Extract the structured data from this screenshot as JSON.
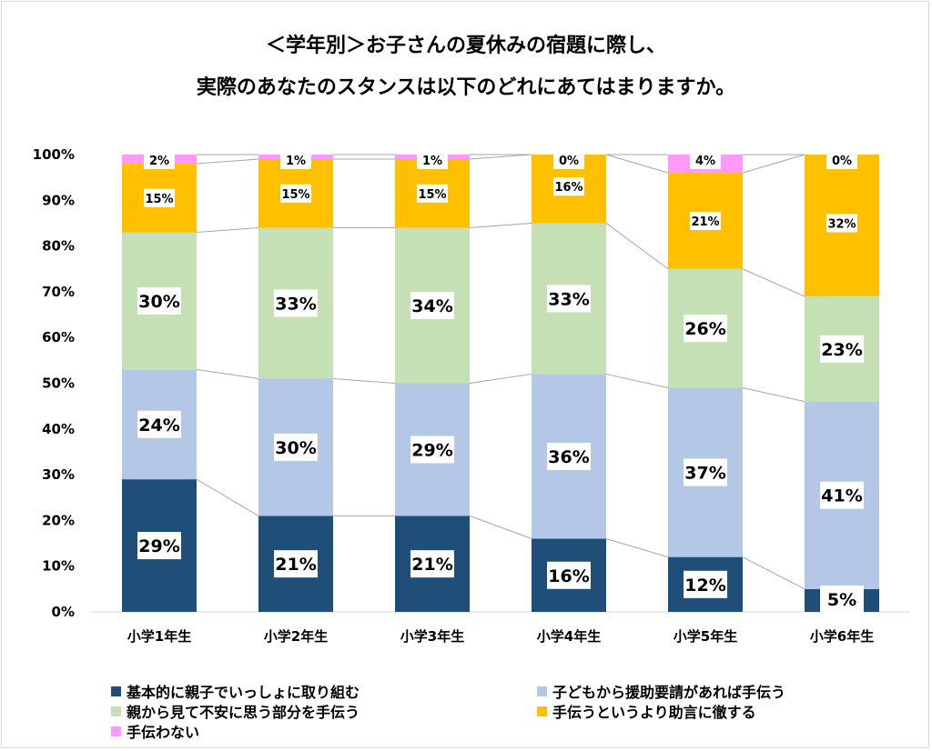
{
  "chart_data": {
    "type": "bar",
    "stacked": true,
    "percent": true,
    "title_line1": "＜学年別＞お子さんの夏休みの宿題に際し、",
    "title_line2": "実際のあなたのスタンスは以下のどれにあてはまりますか。",
    "categories": [
      "小学1年生",
      "小学2年生",
      "小学3年生",
      "小学4年生",
      "小学5年生",
      "小学6年生"
    ],
    "y_ticks": [
      "0%",
      "10%",
      "20%",
      "30%",
      "40%",
      "50%",
      "60%",
      "70%",
      "80%",
      "90%",
      "100%"
    ],
    "ylim": [
      0,
      100
    ],
    "series": [
      {
        "name": "基本的に親子でいっしょに取り組む",
        "color": "#1f4e79",
        "values": [
          29,
          21,
          21,
          16,
          12,
          5
        ],
        "labels": [
          "29%",
          "21%",
          "21%",
          "16%",
          "12%",
          "5%"
        ]
      },
      {
        "name": "子どもから援助要請があれば手伝う",
        "color": "#b4c7e7",
        "values": [
          24,
          30,
          29,
          36,
          37,
          41
        ],
        "labels": [
          "24%",
          "30%",
          "29%",
          "36%",
          "37%",
          "41%"
        ]
      },
      {
        "name": "親から見て不安に思う部分を手伝う",
        "color": "#c5e0b4",
        "values": [
          30,
          33,
          34,
          33,
          26,
          23
        ],
        "labels": [
          "30%",
          "33%",
          "34%",
          "33%",
          "26%",
          "23%"
        ]
      },
      {
        "name": "手伝うというより助言に徹する",
        "color": "#ffc000",
        "values": [
          15,
          15,
          15,
          16,
          21,
          32
        ],
        "labels": [
          "15%",
          "15%",
          "15%",
          "16%",
          "21%",
          "32%"
        ]
      },
      {
        "name": "手伝わない",
        "color": "#ff99ff",
        "values": [
          2,
          1,
          1,
          0,
          4,
          0
        ],
        "labels": [
          "2%",
          "1%",
          "1%",
          "0%",
          "4%",
          "0%"
        ]
      }
    ],
    "legend_position": "bottom",
    "series_lines": true
  }
}
